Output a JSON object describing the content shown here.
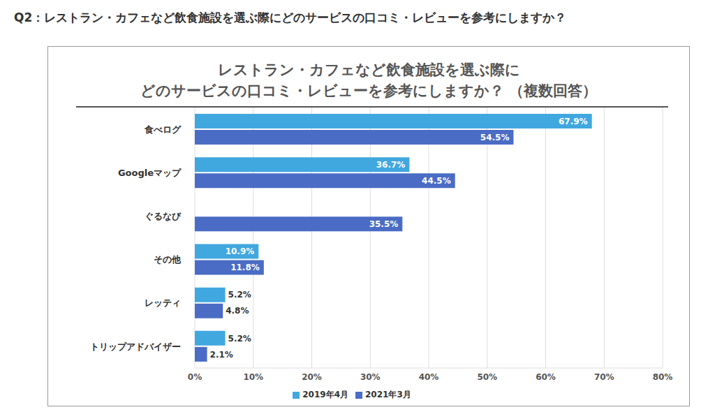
{
  "heading": "Q2：レストラン・カフェなど飲食施設を選ぶ際にどのサービスの口コミ・レビューを参考にしますか？",
  "chart_data": {
    "type": "bar",
    "title": "レストラン・カフェなど飲食施設を選ぶ際に\nどのサービスの口コミ・レビューを参考にしますか？ （複数回答）",
    "orientation": "horizontal",
    "categories": [
      "食べログ",
      "Googleマップ",
      "ぐるなび",
      "その他",
      "レッティ",
      "トリップアドバイザー"
    ],
    "series": [
      {
        "name": "2019年4月",
        "color": "#41a7df",
        "values": [
          67.9,
          36.7,
          null,
          10.9,
          5.2,
          5.2
        ],
        "value_labels": [
          "67.9%",
          "36.7%",
          null,
          "10.9%",
          "5.2%",
          "5.2%"
        ]
      },
      {
        "name": "2021年3月",
        "color": "#4a6cc4",
        "values": [
          54.5,
          44.5,
          35.5,
          11.8,
          4.8,
          2.1
        ],
        "value_labels": [
          "54.5%",
          "44.5%",
          "35.5%",
          "11.8%",
          "4.8%",
          "2.1%"
        ]
      }
    ],
    "xlim": [
      0,
      80
    ],
    "xticks": [
      {
        "value": 0,
        "label": "0%"
      },
      {
        "value": 10,
        "label": "10%"
      },
      {
        "value": 20,
        "label": "20%"
      },
      {
        "value": 30,
        "label": "30%"
      },
      {
        "value": 40,
        "label": "40%"
      },
      {
        "value": 50,
        "label": "50%"
      },
      {
        "value": 60,
        "label": "60%"
      },
      {
        "value": 70,
        "label": "70%"
      },
      {
        "value": 80,
        "label": "80%"
      }
    ],
    "grid": true,
    "legend": "bottom",
    "data_labels": true
  }
}
